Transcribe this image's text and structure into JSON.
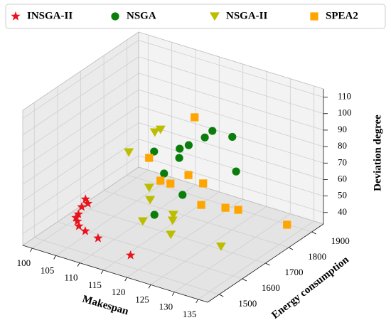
{
  "chart_data": {
    "type": "scatter3d",
    "xlabel": "Makespan",
    "ylabel": "Energy consumption",
    "zlabel": "Deviation degree",
    "xlim": [
      98,
      137
    ],
    "ylim": [
      1450,
      1950
    ],
    "zlim": [
      33,
      115
    ],
    "xticks": [
      100,
      105,
      110,
      115,
      120,
      125,
      130,
      135
    ],
    "yticks": [
      1500,
      1600,
      1700,
      1800,
      1900
    ],
    "zticks": [
      40,
      50,
      60,
      70,
      80,
      90,
      100,
      110
    ],
    "legend": "upper center",
    "grid": true,
    "series": [
      {
        "name": "INSGA-II",
        "color": "#e8141c",
        "marker": "star",
        "x": [
          103.9,
          104.4,
          103.1,
          102.4,
          101.9,
          102.2,
          102.5,
          106.3,
          109.0,
          118.3
        ],
        "y": [
          1600,
          1600,
          1600,
          1600,
          1600,
          1600,
          1600,
          1550,
          1550,
          1500
        ],
        "z": [
          52.0,
          49.8,
          46.6,
          41.6,
          39.0,
          37.1,
          34.4,
          39.5,
          37.6,
          40.2
        ]
      },
      {
        "name": "NSGA",
        "color": "#0a7d0a",
        "marker": "circle",
        "x": [
          125.1,
          120.9,
          119.3,
          115.9,
          114.0,
          108.6,
          113.9,
          110.7,
          114.6,
          116.0,
          125.9
        ],
        "y": [
          1800,
          1800,
          1800,
          1800,
          1800,
          1800,
          1800,
          1800,
          1800,
          1650,
          1800
        ],
        "z": [
          89.6,
          89.5,
          84.1,
          76.4,
          72.6,
          66.1,
          66.9,
          54.6,
          45.1,
          48.5,
          69.3
        ]
      },
      {
        "name": "NSGA-II",
        "color": "#bdbd00",
        "marker": "triangle",
        "x": [
          111.2,
          112.4,
          105.7,
          110.0,
          110.2,
          115.1,
          117.4,
          111.1,
          121.9,
          132.5
        ],
        "y": [
          1750,
          1750,
          1750,
          1750,
          1750,
          1750,
          1700,
          1700,
          1600,
          1600
        ],
        "z": [
          84.8,
          87.5,
          67.8,
          50.1,
          42.9,
          38.2,
          41.5,
          35.5,
          46.4,
          48.6
        ]
      },
      {
        "name": "SPEA2",
        "color": "#ffa500",
        "marker": "square",
        "x": [
          114.7,
          105.1,
          107.5,
          109.6,
          113.4,
          116.5,
          116.1,
          121.2,
          123.9,
          134.2
        ],
        "y": [
          1850,
          1850,
          1850,
          1850,
          1850,
          1850,
          1850,
          1850,
          1850,
          1850
        ],
        "z": [
          87.5,
          54.4,
          42.7,
          42.8,
          51.3,
          49.0,
          35.6,
          38.4,
          39.5,
          39.6
        ]
      }
    ]
  }
}
